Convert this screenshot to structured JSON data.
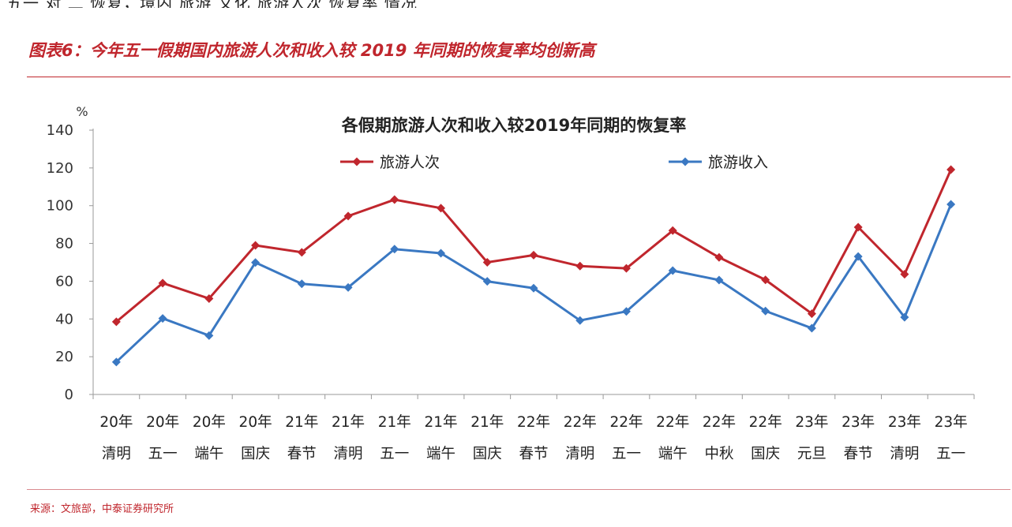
{
  "figure": {
    "title": "图表6：今年五一假期国内旅游人次和收入较 2019 年同期的恢复率均创新高",
    "source": "来源：文旅部，中泰证券研究所",
    "top_cut_text": "五一 对 二 恢复，境内 旅游 文化 旅游人次 恢复率 情况"
  },
  "colors": {
    "accent": "#c0262d",
    "series_visitors": "#c0262d",
    "series_income": "#3a78c2"
  },
  "chart_data": {
    "type": "line",
    "title": "各假期旅游人次和收入较2019年同期的恢复率",
    "ylabel": "%",
    "ylim": [
      0,
      140
    ],
    "yticks": [
      0,
      20,
      40,
      60,
      80,
      100,
      120,
      140
    ],
    "legend_position": "top-center",
    "categories": [
      [
        "20年",
        "清明"
      ],
      [
        "20年",
        "五一"
      ],
      [
        "20年",
        "端午"
      ],
      [
        "20年",
        "国庆"
      ],
      [
        "21年",
        "春节"
      ],
      [
        "21年",
        "清明"
      ],
      [
        "21年",
        "五一"
      ],
      [
        "21年",
        "端午"
      ],
      [
        "21年",
        "国庆"
      ],
      [
        "22年",
        "春节"
      ],
      [
        "22年",
        "清明"
      ],
      [
        "22年",
        "五一"
      ],
      [
        "22年",
        "端午"
      ],
      [
        "22年",
        "中秋"
      ],
      [
        "22年",
        "国庆"
      ],
      [
        "23年",
        "元旦"
      ],
      [
        "23年",
        "春节"
      ],
      [
        "23年",
        "清明"
      ],
      [
        "23年",
        "五一"
      ]
    ],
    "series": [
      {
        "name": "旅游人次",
        "color": "#c0262d",
        "values": [
          38.5,
          59,
          50.8,
          79,
          75.3,
          94.5,
          103.2,
          98.7,
          70,
          73.8,
          68,
          66.8,
          86.8,
          72.6,
          60.7,
          42.8,
          88.6,
          63.7,
          119.1
        ]
      },
      {
        "name": "旅游收入",
        "color": "#3a78c2",
        "values": [
          17.2,
          40.3,
          31.2,
          69.9,
          58.6,
          56.7,
          77,
          74.8,
          59.9,
          56.3,
          39.2,
          44,
          65.6,
          60.6,
          44.2,
          35.1,
          73.1,
          40.9,
          100.7
        ]
      }
    ]
  }
}
